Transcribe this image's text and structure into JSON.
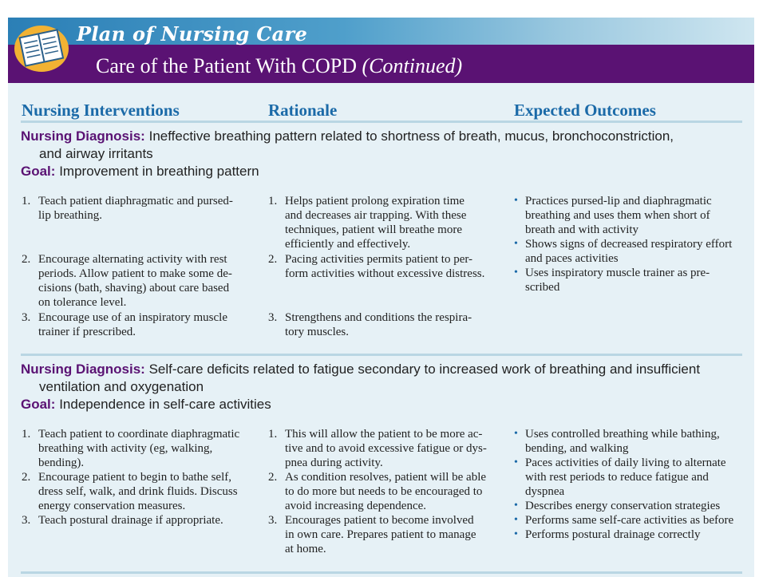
{
  "header": {
    "series_title": "Plan of Nursing Care",
    "title": "Care of the Patient With COPD",
    "title_suffix": "(Continued)"
  },
  "columns": [
    "Nursing Interventions",
    "Rationale",
    "Expected Outcomes"
  ],
  "sections": [
    {
      "diagnosis_label": "Nursing Diagnosis:",
      "diagnosis_line1": "Ineffective breathing pattern related to shortness of breath, mucus, bronchoconstriction,",
      "diagnosis_line2": "and airway irritants",
      "goal_label": "Goal:",
      "goal_text": "Improvement in breathing pattern",
      "interventions": [
        {
          "n": "1.",
          "lines": [
            "Teach patient diaphragmatic and pursed-",
            "lip breathing."
          ]
        },
        {
          "n": "2.",
          "lines": [
            "Encourage alternating activity with rest",
            "periods. Allow patient to make some de-",
            "cisions (bath, shaving) about care based",
            "on tolerance level."
          ]
        },
        {
          "n": "3.",
          "lines": [
            "Encourage use of an inspiratory muscle",
            "trainer if prescribed."
          ]
        }
      ],
      "rationale": [
        {
          "n": "1.",
          "lines": [
            "Helps patient prolong expiration time",
            "and decreases air trapping. With these",
            "techniques, patient will breathe more",
            "efficiently and effectively."
          ]
        },
        {
          "n": "2.",
          "lines": [
            "Pacing activities permits patient to per-",
            "form activities without excessive distress."
          ]
        },
        {
          "n": "3.",
          "lines": [
            "Strengthens and conditions the respira-",
            "tory muscles."
          ]
        }
      ],
      "outcomes": [
        {
          "lines": [
            "Practices pursed-lip and diaphragmatic",
            "breathing and uses them when short of",
            "breath and with activity"
          ]
        },
        {
          "lines": [
            "Shows signs of decreased respiratory effort",
            "and paces activities"
          ]
        },
        {
          "lines": [
            "Uses inspiratory muscle trainer as pre-",
            "scribed"
          ]
        }
      ]
    },
    {
      "diagnosis_label": "Nursing Diagnosis:",
      "diagnosis_line1": "Self-care deficits related to fatigue secondary to increased work of breathing and insufficient",
      "diagnosis_line2": "ventilation and oxygenation",
      "goal_label": "Goal:",
      "goal_text": "Independence in self-care activities",
      "interventions": [
        {
          "n": "1.",
          "lines": [
            "Teach patient to coordinate diaphragmatic",
            "breathing with activity (eg, walking,",
            "bending)."
          ]
        },
        {
          "n": "2.",
          "lines": [
            "Encourage patient to begin to bathe self,",
            "dress self, walk, and drink fluids. Discuss",
            "energy conservation measures."
          ]
        },
        {
          "n": "3.",
          "lines": [
            "Teach postural drainage if appropriate."
          ]
        }
      ],
      "rationale": [
        {
          "n": "1.",
          "lines": [
            "This will allow the patient to be more ac-",
            "tive and to avoid excessive fatigue or dys-",
            "pnea during activity."
          ]
        },
        {
          "n": "2.",
          "lines": [
            "As condition resolves, patient will be able",
            "to do more but needs to be encouraged to",
            "avoid increasing dependence."
          ]
        },
        {
          "n": "3.",
          "lines": [
            "Encourages patient to become involved",
            "in own care. Prepares patient to manage",
            "at home."
          ]
        }
      ],
      "outcomes": [
        {
          "lines": [
            "Uses controlled breathing while bathing,",
            "bending, and walking"
          ]
        },
        {
          "lines": [
            "Paces activities of daily living to alternate",
            "with rest periods to reduce fatigue and",
            "dyspnea"
          ]
        },
        {
          "lines": [
            "Describes energy conservation strategies"
          ]
        },
        {
          "lines": [
            "Performs same self-care activities as before"
          ]
        },
        {
          "lines": [
            "Performs postural drainage correctly"
          ]
        }
      ]
    }
  ],
  "colors": {
    "purple": "#5a1273",
    "blue": "#1b6aa8",
    "background": "#e6f1f6"
  },
  "icons": {
    "logo": "care-plan-book-icon",
    "bullet": "bullet-dot-icon"
  }
}
